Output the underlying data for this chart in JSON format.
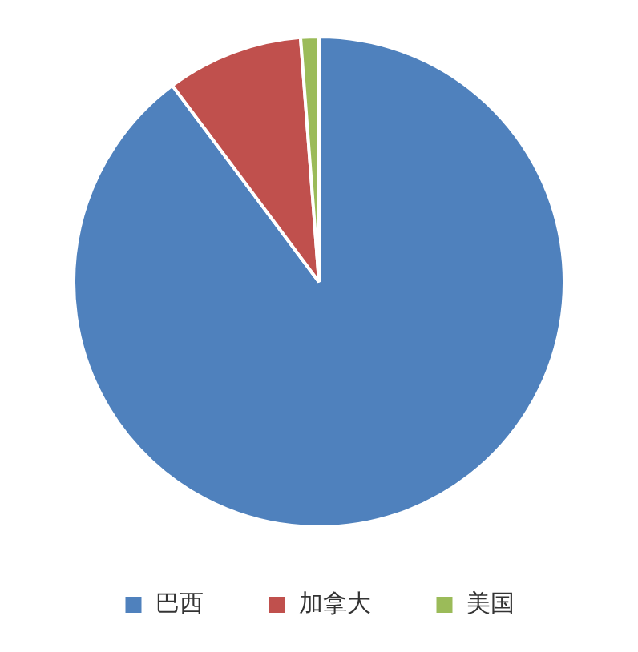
{
  "chart_data": {
    "type": "pie",
    "categories": [
      "巴西",
      "加拿大",
      "美国"
    ],
    "values": [
      89.8,
      9.0,
      1.2
    ],
    "colors": [
      "#4f81bd",
      "#c0504d",
      "#9bbb59"
    ],
    "legend": "bottom"
  }
}
